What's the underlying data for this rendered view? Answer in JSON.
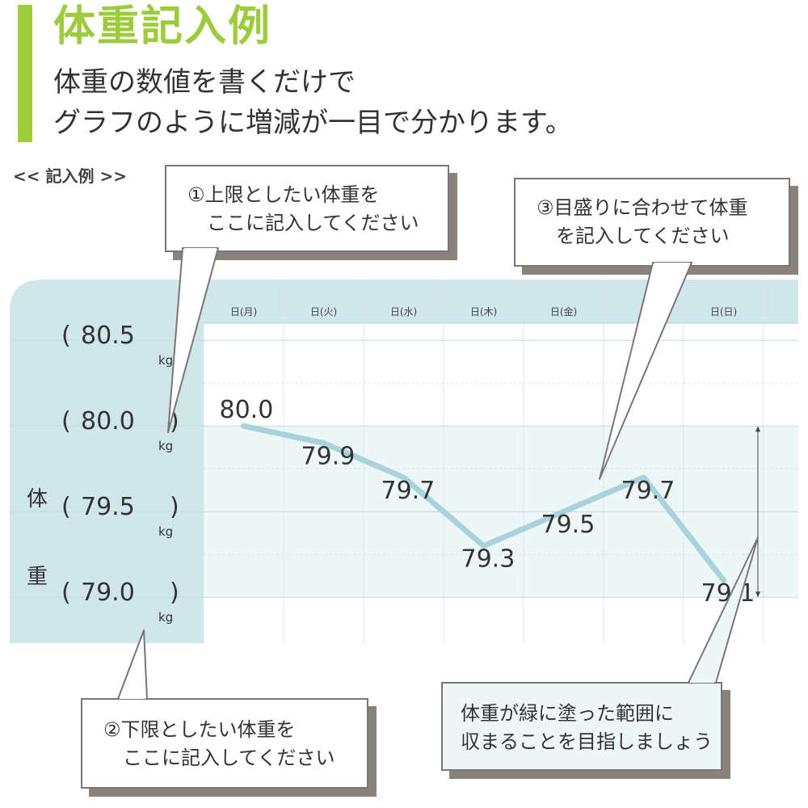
{
  "header": {
    "title": "体重記入例",
    "subtitle_line1": "体重の数値を書くだけで",
    "subtitle_line2": "グラフのように増減が一目で分かります。",
    "example_label": "<< 記入例 >>"
  },
  "chart": {
    "axis_title_top": "体",
    "axis_title_bottom": "重",
    "unit": "kg",
    "paren_open": "(",
    "paren_close": ")",
    "y_scale_labels": [
      "80.5",
      "80.0",
      "79.5",
      "79.0"
    ],
    "days": [
      "日(月)",
      "日(火)",
      "日(水)",
      "日(木)",
      "日(金)",
      "",
      "日(日)"
    ],
    "weights": [
      "80.0",
      "79.9",
      "79.7",
      "79.3",
      "79.5",
      "79.7",
      "79.1"
    ]
  },
  "chart_data": {
    "type": "line",
    "categories": [
      "日(月)",
      "日(火)",
      "日(水)",
      "日(木)",
      "日(金)",
      "",
      "日(日)"
    ],
    "series": [
      {
        "values": [
          80.0,
          79.9,
          79.7,
          79.3,
          79.5,
          79.7,
          79.1
        ]
      }
    ],
    "ylabel": "体重",
    "y_ticks": [
      80.5,
      80.0,
      79.5,
      79.0
    ],
    "ylim": [
      78.95,
      80.6
    ],
    "target_range": [
      79.0,
      80.0
    ],
    "grid": true,
    "line_color": "#a9d3dc",
    "band_color": "#eef7f8",
    "header_color": "#cfe6ea"
  },
  "callouts": {
    "upper": {
      "line1": "①上限としたい体重を",
      "line2": "ここに記入してください"
    },
    "scale": {
      "line1": "③目盛りに合わせて体重",
      "line2": "を記入してください"
    },
    "lower": {
      "line1": "②下限としたい体重を",
      "line2": "ここに記入してください"
    },
    "range": {
      "line1": "体重が緑に塗った範囲に",
      "line2": "収まることを目指しましょう"
    }
  },
  "colors": {
    "accent": "#9ccb3b",
    "text": "#333333",
    "shadow": "#8a837c"
  }
}
